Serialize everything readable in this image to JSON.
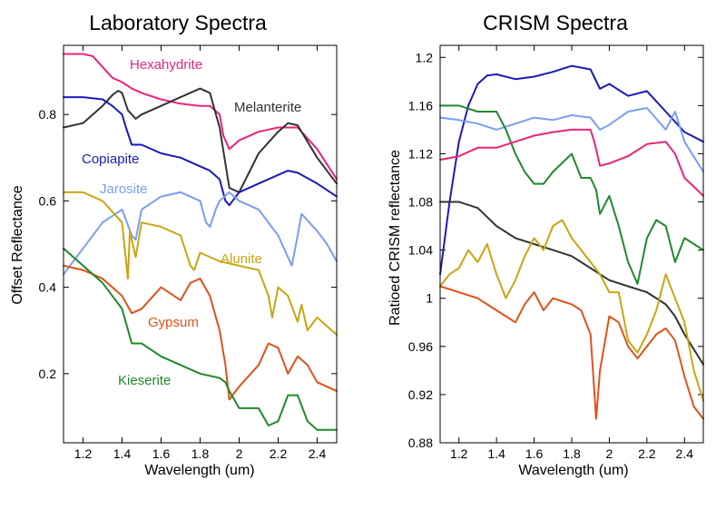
{
  "chart_data": [
    {
      "type": "line",
      "title": "Laboratory Spectra",
      "xlabel": "Wavelength (um)",
      "ylabel": "Offset Reflectance",
      "xlim": [
        1.1,
        2.5
      ],
      "ylim": [
        0.04,
        0.96
      ],
      "xticks": [
        1.2,
        1.4,
        1.6,
        1.8,
        2.0,
        2.2,
        2.4
      ],
      "xtick_labels": [
        "1.2",
        "1.4",
        "1.6",
        "1.8",
        "2",
        "2.2",
        "2.4"
      ],
      "yticks": [
        0.2,
        0.4,
        0.6,
        0.8
      ],
      "ytick_labels": [
        "0.2",
        "0.4",
        "0.6",
        "0.8"
      ],
      "grid": false,
      "legend": "labels placed next to curves",
      "series": [
        {
          "name": "Hexahydrite",
          "color": "#e8247a",
          "x": [
            1.1,
            1.2,
            1.25,
            1.3,
            1.35,
            1.4,
            1.45,
            1.5,
            1.6,
            1.7,
            1.8,
            1.85,
            1.9,
            1.92,
            1.95,
            2.0,
            2.1,
            2.2,
            2.3,
            2.4,
            2.5
          ],
          "y": [
            0.94,
            0.94,
            0.935,
            0.91,
            0.885,
            0.875,
            0.86,
            0.85,
            0.835,
            0.825,
            0.82,
            0.82,
            0.8,
            0.75,
            0.72,
            0.74,
            0.76,
            0.77,
            0.77,
            0.72,
            0.65
          ]
        },
        {
          "name": "Melanterite",
          "color": "#333333",
          "x": [
            1.1,
            1.2,
            1.3,
            1.35,
            1.38,
            1.4,
            1.43,
            1.47,
            1.5,
            1.6,
            1.7,
            1.8,
            1.85,
            1.9,
            1.95,
            2.0,
            2.1,
            2.2,
            2.25,
            2.3,
            2.4,
            2.5
          ],
          "y": [
            0.77,
            0.78,
            0.82,
            0.845,
            0.855,
            0.85,
            0.81,
            0.79,
            0.8,
            0.82,
            0.84,
            0.86,
            0.85,
            0.77,
            0.63,
            0.62,
            0.71,
            0.76,
            0.78,
            0.775,
            0.7,
            0.64
          ]
        },
        {
          "name": "Copiapite",
          "color": "#1a1ab8",
          "x": [
            1.1,
            1.2,
            1.3,
            1.35,
            1.4,
            1.42,
            1.45,
            1.5,
            1.6,
            1.7,
            1.8,
            1.85,
            1.9,
            1.93,
            1.95,
            2.0,
            2.1,
            2.2,
            2.25,
            2.3,
            2.4,
            2.5
          ],
          "y": [
            0.84,
            0.84,
            0.835,
            0.82,
            0.8,
            0.77,
            0.73,
            0.73,
            0.71,
            0.7,
            0.68,
            0.67,
            0.65,
            0.6,
            0.59,
            0.62,
            0.64,
            0.66,
            0.67,
            0.665,
            0.64,
            0.61
          ]
        },
        {
          "name": "Jarosite",
          "color": "#7a9ef0",
          "x": [
            1.1,
            1.2,
            1.3,
            1.4,
            1.45,
            1.47,
            1.5,
            1.6,
            1.7,
            1.8,
            1.83,
            1.85,
            1.88,
            1.9,
            1.95,
            2.0,
            2.1,
            2.2,
            2.25,
            2.27,
            2.3,
            2.32,
            2.4,
            2.45,
            2.5
          ],
          "y": [
            0.43,
            0.49,
            0.55,
            0.58,
            0.52,
            0.51,
            0.58,
            0.61,
            0.62,
            0.6,
            0.55,
            0.54,
            0.58,
            0.6,
            0.62,
            0.6,
            0.58,
            0.52,
            0.47,
            0.45,
            0.52,
            0.57,
            0.53,
            0.5,
            0.46
          ]
        },
        {
          "name": "Alunite",
          "color": "#c9a512",
          "x": [
            1.1,
            1.2,
            1.3,
            1.4,
            1.43,
            1.44,
            1.47,
            1.5,
            1.6,
            1.7,
            1.75,
            1.77,
            1.8,
            1.9,
            2.0,
            2.1,
            2.15,
            2.17,
            2.2,
            2.25,
            2.3,
            2.32,
            2.35,
            2.4,
            2.5
          ],
          "y": [
            0.62,
            0.62,
            0.6,
            0.55,
            0.42,
            0.53,
            0.47,
            0.55,
            0.54,
            0.52,
            0.45,
            0.44,
            0.48,
            0.46,
            0.45,
            0.44,
            0.38,
            0.33,
            0.4,
            0.38,
            0.32,
            0.36,
            0.3,
            0.33,
            0.29
          ]
        },
        {
          "name": "Gypsum",
          "color": "#e0521a",
          "x": [
            1.1,
            1.2,
            1.3,
            1.4,
            1.45,
            1.5,
            1.6,
            1.7,
            1.75,
            1.8,
            1.85,
            1.9,
            1.93,
            1.95,
            2.0,
            2.1,
            2.15,
            2.2,
            2.25,
            2.3,
            2.35,
            2.4,
            2.5
          ],
          "y": [
            0.45,
            0.44,
            0.42,
            0.38,
            0.34,
            0.35,
            0.4,
            0.37,
            0.41,
            0.42,
            0.38,
            0.3,
            0.22,
            0.14,
            0.17,
            0.22,
            0.27,
            0.26,
            0.2,
            0.24,
            0.22,
            0.18,
            0.16
          ]
        },
        {
          "name": "Kieserite",
          "color": "#1f8a2a",
          "x": [
            1.1,
            1.2,
            1.3,
            1.4,
            1.45,
            1.5,
            1.6,
            1.7,
            1.8,
            1.9,
            1.93,
            1.95,
            2.0,
            2.1,
            2.15,
            2.2,
            2.25,
            2.3,
            2.35,
            2.4,
            2.5
          ],
          "y": [
            0.49,
            0.45,
            0.41,
            0.35,
            0.27,
            0.27,
            0.24,
            0.22,
            0.2,
            0.19,
            0.18,
            0.16,
            0.12,
            0.12,
            0.08,
            0.09,
            0.15,
            0.15,
            0.09,
            0.07,
            0.07
          ]
        }
      ]
    },
    {
      "type": "line",
      "title": "CRISM Spectra",
      "xlabel": "Wavelength (um)",
      "ylabel": "Ratioed CRISM reflectance",
      "xlim": [
        1.1,
        2.5
      ],
      "ylim": [
        0.88,
        1.21
      ],
      "xticks": [
        1.2,
        1.4,
        1.6,
        1.8,
        2.0,
        2.2,
        2.4
      ],
      "xtick_labels": [
        "1.2",
        "1.4",
        "1.6",
        "1.8",
        "2",
        "2.2",
        "2.4"
      ],
      "yticks": [
        0.88,
        0.92,
        0.96,
        1.0,
        1.04,
        1.08,
        1.12,
        1.16,
        1.2
      ],
      "ytick_labels": [
        "0.88",
        "0.92",
        "0.96",
        "1",
        "1.04",
        "1.08",
        "1.12",
        "1.16",
        "1.2"
      ],
      "grid": false,
      "series": [
        {
          "color": "#1a1ab8",
          "x": [
            1.1,
            1.15,
            1.2,
            1.25,
            1.3,
            1.35,
            1.4,
            1.5,
            1.6,
            1.7,
            1.8,
            1.9,
            1.95,
            2.0,
            2.1,
            2.2,
            2.3,
            2.4,
            2.5
          ],
          "y": [
            1.02,
            1.08,
            1.13,
            1.16,
            1.178,
            1.185,
            1.186,
            1.182,
            1.184,
            1.188,
            1.193,
            1.19,
            1.174,
            1.178,
            1.168,
            1.172,
            1.155,
            1.138,
            1.13
          ]
        },
        {
          "color": "#7a9ef0",
          "x": [
            1.1,
            1.2,
            1.3,
            1.4,
            1.5,
            1.6,
            1.7,
            1.8,
            1.9,
            1.95,
            2.0,
            2.1,
            2.2,
            2.3,
            2.35,
            2.4,
            2.5
          ],
          "y": [
            1.15,
            1.148,
            1.145,
            1.14,
            1.145,
            1.15,
            1.148,
            1.152,
            1.15,
            1.14,
            1.144,
            1.155,
            1.158,
            1.14,
            1.155,
            1.13,
            1.105
          ]
        },
        {
          "color": "#1f8a2a",
          "x": [
            1.1,
            1.2,
            1.3,
            1.4,
            1.45,
            1.5,
            1.55,
            1.6,
            1.65,
            1.7,
            1.8,
            1.85,
            1.9,
            1.93,
            1.95,
            2.0,
            2.05,
            2.1,
            2.15,
            2.2,
            2.25,
            2.3,
            2.35,
            2.4,
            2.5
          ],
          "y": [
            1.16,
            1.16,
            1.155,
            1.155,
            1.14,
            1.12,
            1.105,
            1.095,
            1.095,
            1.105,
            1.12,
            1.1,
            1.1,
            1.09,
            1.07,
            1.085,
            1.06,
            1.03,
            1.012,
            1.05,
            1.065,
            1.06,
            1.03,
            1.05,
            1.04
          ]
        },
        {
          "color": "#e8247a",
          "x": [
            1.1,
            1.2,
            1.3,
            1.4,
            1.5,
            1.6,
            1.7,
            1.8,
            1.9,
            1.92,
            1.95,
            2.0,
            2.1,
            2.2,
            2.3,
            2.35,
            2.4,
            2.5
          ],
          "y": [
            1.115,
            1.118,
            1.125,
            1.125,
            1.13,
            1.135,
            1.138,
            1.14,
            1.14,
            1.13,
            1.11,
            1.112,
            1.118,
            1.128,
            1.13,
            1.12,
            1.1,
            1.085
          ]
        },
        {
          "color": "#333333",
          "x": [
            1.1,
            1.2,
            1.3,
            1.4,
            1.5,
            1.6,
            1.7,
            1.8,
            1.9,
            2.0,
            2.1,
            2.2,
            2.3,
            2.35,
            2.4,
            2.5
          ],
          "y": [
            1.08,
            1.08,
            1.075,
            1.06,
            1.05,
            1.045,
            1.04,
            1.035,
            1.025,
            1.015,
            1.01,
            1.005,
            0.995,
            0.985,
            0.97,
            0.945
          ]
        },
        {
          "color": "#c9a512",
          "x": [
            1.1,
            1.15,
            1.2,
            1.25,
            1.3,
            1.35,
            1.4,
            1.45,
            1.5,
            1.55,
            1.6,
            1.65,
            1.7,
            1.75,
            1.8,
            1.85,
            1.9,
            1.95,
            2.0,
            2.05,
            2.1,
            2.15,
            2.2,
            2.25,
            2.3,
            2.35,
            2.4,
            2.45,
            2.5
          ],
          "y": [
            1.01,
            1.02,
            1.025,
            1.04,
            1.03,
            1.045,
            1.02,
            1.0,
            1.015,
            1.035,
            1.05,
            1.04,
            1.06,
            1.065,
            1.05,
            1.04,
            1.03,
            1.02,
            1.005,
            1.005,
            0.965,
            0.955,
            0.97,
            0.99,
            1.02,
            1.0,
            0.98,
            0.94,
            0.915
          ]
        },
        {
          "color": "#e0521a",
          "x": [
            1.1,
            1.2,
            1.3,
            1.35,
            1.4,
            1.45,
            1.5,
            1.55,
            1.6,
            1.65,
            1.7,
            1.8,
            1.85,
            1.9,
            1.93,
            1.95,
            2.0,
            2.05,
            2.1,
            2.15,
            2.2,
            2.25,
            2.3,
            2.35,
            2.4,
            2.45,
            2.5
          ],
          "y": [
            1.01,
            1.005,
            1.0,
            0.995,
            0.99,
            0.985,
            0.98,
            0.995,
            1.005,
            0.99,
            1.0,
            0.995,
            0.99,
            0.97,
            0.9,
            0.94,
            0.985,
            0.98,
            0.96,
            0.95,
            0.96,
            0.97,
            0.975,
            0.965,
            0.935,
            0.91,
            0.9
          ]
        }
      ]
    }
  ]
}
